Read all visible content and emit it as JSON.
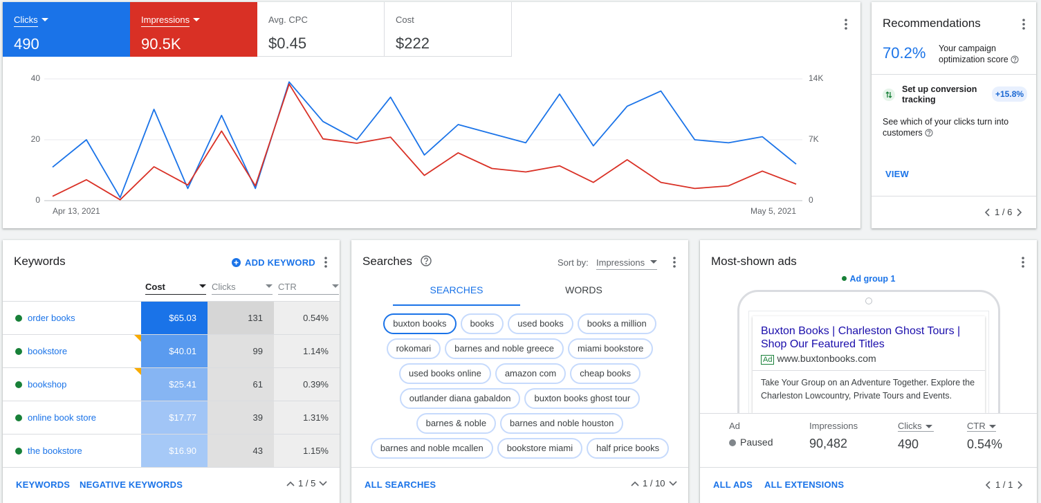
{
  "chart_data": {
    "type": "line",
    "categories": [
      "Apr 13, 2021",
      null,
      null,
      null,
      null,
      null,
      null,
      null,
      null,
      null,
      null,
      null,
      null,
      null,
      null,
      null,
      null,
      null,
      null,
      null,
      null,
      null,
      "May 5, 2021"
    ],
    "series": [
      {
        "name": "Clicks",
        "color": "#1a73e8",
        "total": "490",
        "values": [
          11,
          20,
          1,
          30,
          4,
          28,
          4,
          39,
          26,
          20,
          34,
          15,
          25,
          22,
          19,
          35,
          18,
          31,
          36,
          20,
          19,
          21,
          12
        ]
      },
      {
        "name": "Impressions",
        "color": "#d93025",
        "total": "90.5K",
        "axis": "y2",
        "values": [
          500,
          2400,
          100,
          3900,
          1800,
          8000,
          1700,
          13400,
          7100,
          6600,
          7300,
          2900,
          5500,
          3700,
          3300,
          4000,
          2100,
          4700,
          2100,
          1400,
          1700,
          3400,
          1900
        ]
      }
    ],
    "ylim": [
      0,
      40
    ],
    "yticks": [
      0,
      20,
      40
    ],
    "y2lim": [
      0,
      14000
    ],
    "y2ticks": [
      0,
      {
        "value": 7000,
        "label": "7K"
      },
      {
        "value": 14000,
        "label": "14K"
      }
    ],
    "grid": true
  },
  "metrics": [
    {
      "label": "Avg. CPC",
      "value": "$0.45"
    },
    {
      "label": "Cost",
      "value": "$222"
    }
  ],
  "recommendations": {
    "title": "Recommendations",
    "score": "70.2%",
    "score_label": "Your campaign optimization score",
    "item": {
      "title": "Set up conversion tracking",
      "uplift": "+15.8%",
      "description": "See which of your clicks turn into customers"
    },
    "action": "VIEW",
    "pager": "1 / 6"
  },
  "keywords": {
    "title": "Keywords",
    "add": "ADD KEYWORD",
    "columns": [
      "Cost",
      "Clicks",
      "CTR"
    ],
    "rows": [
      [
        "order books",
        "$65.03",
        "131",
        "0.54%"
      ],
      [
        "bookstore",
        "$40.01",
        "99",
        "1.14%"
      ],
      [
        "bookshop",
        "$25.41",
        "61",
        "0.39%"
      ],
      [
        "online book store",
        "$17.77",
        "39",
        "1.31%"
      ],
      [
        "the bookstore",
        "$16.90",
        "43",
        "1.15%"
      ]
    ],
    "footer": [
      "KEYWORDS",
      "NEGATIVE KEYWORDS"
    ],
    "pager": "1 / 5"
  },
  "searches": {
    "title": "Searches",
    "sort_label": "Sort by:",
    "sort_value": "Impressions",
    "tabs": [
      "SEARCHES",
      "WORDS"
    ],
    "chips": [
      [
        "buxton books",
        "books",
        "used books",
        "books a million"
      ],
      [
        "rokomari",
        "barnes and noble greece",
        "miami bookstore"
      ],
      [
        "used books online",
        "amazon com",
        "cheap books"
      ],
      [
        "outlander diana gabaldon",
        "buxton books ghost tour"
      ],
      [
        "barnes & noble",
        "barnes and noble houston"
      ],
      [
        "barnes and noble mcallen",
        "bookstore miami",
        "half price books"
      ]
    ],
    "footer": "ALL SEARCHES",
    "pager": "1 / 10"
  },
  "ads": {
    "title": "Most-shown ads",
    "ad_group": "Ad group 1",
    "headline": "Buxton Books | Charleston Ghost Tours | Shop Our Featured Titles",
    "badge": "Ad",
    "url": "www.buxtonbooks.com",
    "description": "Take Your Group on an Adventure Together. Explore the Charleston Lowcountry, Private Tours and Events.",
    "stats": [
      {
        "label": "Ad",
        "value": "Paused"
      },
      {
        "label": "Impressions",
        "value": "90,482"
      },
      {
        "label": "Clicks",
        "value": "490"
      },
      {
        "label": "CTR",
        "value": "0.54%"
      }
    ],
    "footer": [
      "ALL ADS",
      "ALL EXTENSIONS"
    ],
    "pager": "1 / 1"
  }
}
